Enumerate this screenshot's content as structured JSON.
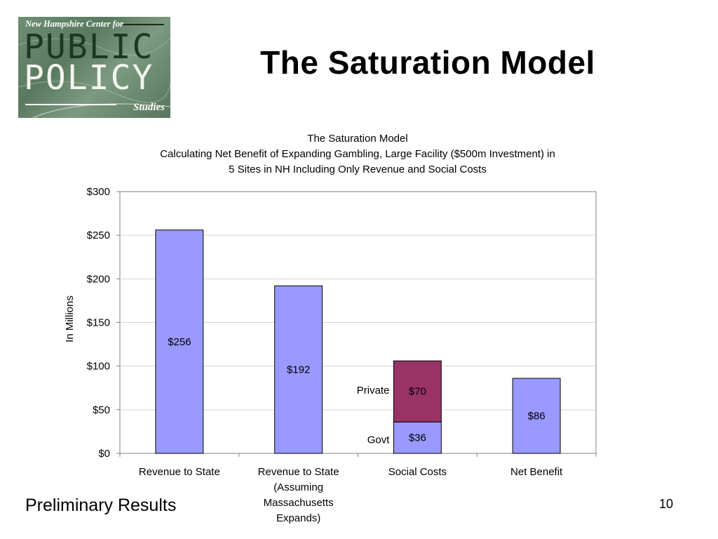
{
  "slide": {
    "title": "The Saturation Model",
    "footer": "Preliminary Results",
    "page_number": "10"
  },
  "logo": {
    "line1": "New Hampshire Center for",
    "line2": "PUBLIC",
    "line3": "POLICY",
    "line4": "Studies",
    "colors": {
      "background": "#6f8f74",
      "public_text": "#1a3a1f",
      "policy_text": "#f2f5ee"
    }
  },
  "chart_data": {
    "type": "bar",
    "stacked": true,
    "title_lines": [
      "The Saturation Model",
      "Calculating Net Benefit of Expanding Gambling, Large Facility ($500m Investment) in",
      "5 Sites in NH Including Only Revenue and Social Costs"
    ],
    "ylabel": "In Millions",
    "xlabel": "",
    "ylim": [
      0,
      300
    ],
    "yticks": [
      0,
      50,
      100,
      150,
      200,
      250,
      300
    ],
    "ytick_labels": [
      "$0",
      "$50",
      "$100",
      "$150",
      "$200",
      "$250",
      "$300"
    ],
    "grid": true,
    "legend": "none",
    "categories": [
      [
        "Revenue to State"
      ],
      [
        "Revenue to State",
        "(Assuming",
        "Massachusetts",
        "Expands)"
      ],
      [
        "Social Costs"
      ],
      [
        "Net Benefit"
      ]
    ],
    "bars": [
      {
        "segments": [
          {
            "value": 256,
            "label": "$256",
            "color": "#9999ff"
          }
        ]
      },
      {
        "segments": [
          {
            "value": 192,
            "label": "$192",
            "color": "#9999ff"
          }
        ]
      },
      {
        "segments": [
          {
            "value": 36,
            "label": "$36",
            "color": "#9999ff",
            "side_label": "Govt"
          },
          {
            "value": 70,
            "label": "$70",
            "color": "#993366",
            "side_label": "Private"
          }
        ]
      },
      {
        "segments": [
          {
            "value": 86,
            "label": "$86",
            "color": "#9999ff"
          }
        ]
      }
    ]
  }
}
